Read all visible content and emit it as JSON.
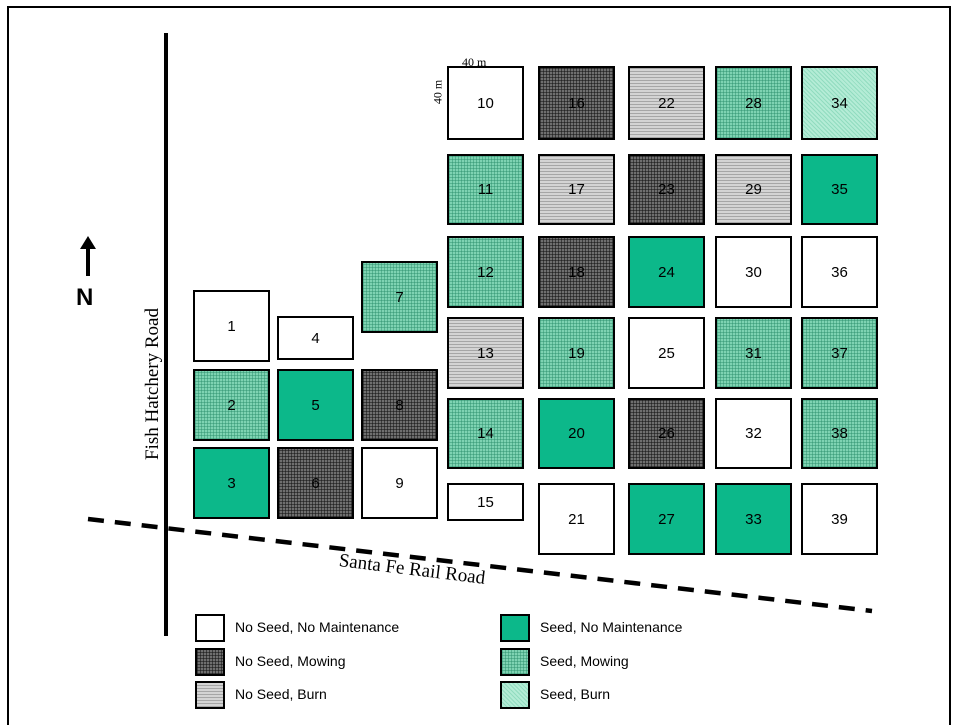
{
  "roads": {
    "fish_hatchery": "Fish Hatchery Road",
    "santa_fe": "Santa Fe Rail Road"
  },
  "north_label": "N",
  "dimensions": {
    "width_label": "40 m",
    "height_label": "40 m"
  },
  "legend": [
    {
      "treatment": "none",
      "label": "No Seed, No Maintenance"
    },
    {
      "treatment": "mow",
      "label": "No Seed, Mowing"
    },
    {
      "treatment": "burn",
      "label": "No Seed, Burn"
    },
    {
      "treatment": "seed",
      "label": "Seed, No Maintenance"
    },
    {
      "treatment": "seedmow",
      "label": "Seed, Mowing"
    },
    {
      "treatment": "seedburn",
      "label": "Seed, Burn"
    }
  ],
  "plots": [
    {
      "id": "1",
      "treatment": "none"
    },
    {
      "id": "2",
      "treatment": "seedmow"
    },
    {
      "id": "3",
      "treatment": "seed"
    },
    {
      "id": "4",
      "treatment": "none"
    },
    {
      "id": "5",
      "treatment": "seed"
    },
    {
      "id": "6",
      "treatment": "mow"
    },
    {
      "id": "7",
      "treatment": "seedmow"
    },
    {
      "id": "8",
      "treatment": "mow"
    },
    {
      "id": "9",
      "treatment": "none"
    },
    {
      "id": "10",
      "treatment": "none"
    },
    {
      "id": "11",
      "treatment": "seedmow"
    },
    {
      "id": "12",
      "treatment": "seedmow"
    },
    {
      "id": "13",
      "treatment": "burn"
    },
    {
      "id": "14",
      "treatment": "seedmow"
    },
    {
      "id": "15",
      "treatment": "none"
    },
    {
      "id": "16",
      "treatment": "mow"
    },
    {
      "id": "17",
      "treatment": "burn"
    },
    {
      "id": "18",
      "treatment": "mow"
    },
    {
      "id": "19",
      "treatment": "seedmow"
    },
    {
      "id": "20",
      "treatment": "seed"
    },
    {
      "id": "21",
      "treatment": "none"
    },
    {
      "id": "22",
      "treatment": "burn"
    },
    {
      "id": "23",
      "treatment": "mow"
    },
    {
      "id": "24",
      "treatment": "seed"
    },
    {
      "id": "25",
      "treatment": "none"
    },
    {
      "id": "26",
      "treatment": "mow"
    },
    {
      "id": "27",
      "treatment": "seed"
    },
    {
      "id": "28",
      "treatment": "seedmow"
    },
    {
      "id": "29",
      "treatment": "burn"
    },
    {
      "id": "30",
      "treatment": "none"
    },
    {
      "id": "31",
      "treatment": "seedmow"
    },
    {
      "id": "32",
      "treatment": "none"
    },
    {
      "id": "33",
      "treatment": "seed"
    },
    {
      "id": "34",
      "treatment": "seedburn"
    },
    {
      "id": "35",
      "treatment": "seed"
    },
    {
      "id": "36",
      "treatment": "none"
    },
    {
      "id": "37",
      "treatment": "seedmow"
    },
    {
      "id": "38",
      "treatment": "seedmow"
    },
    {
      "id": "39",
      "treatment": "none"
    }
  ]
}
